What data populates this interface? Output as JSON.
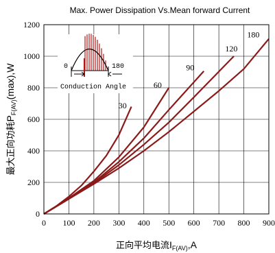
{
  "chart_data": {
    "type": "line",
    "title": "Max. Power Dissipation Vs.Mean forward Current",
    "xlabel": {
      "prefix": "正向平均电流",
      "symbol": "I",
      "subscript": "F(AV)",
      "unit": ",A"
    },
    "ylabel": {
      "prefix": "最大正向功耗",
      "symbol": "P",
      "subscript": "F(AV)",
      "unit": "(max),W"
    },
    "xlim": [
      0,
      900
    ],
    "ylim": [
      0,
      1200
    ],
    "xticks": [
      0,
      100,
      200,
      300,
      400,
      500,
      600,
      700,
      800,
      900
    ],
    "yticks": [
      0,
      200,
      400,
      600,
      800,
      1000,
      1200
    ],
    "grid": true,
    "series": [
      {
        "name": "30",
        "x": [
          0,
          50,
          100,
          150,
          200,
          250,
          300,
          350
        ],
        "y": [
          0,
          50,
          110,
          180,
          270,
          370,
          500,
          680
        ]
      },
      {
        "name": "60",
        "x": [
          0,
          100,
          200,
          300,
          400,
          500
        ],
        "y": [
          0,
          100,
          210,
          360,
          550,
          800
        ]
      },
      {
        "name": "90",
        "x": [
          0,
          100,
          200,
          300,
          400,
          500,
          640
        ],
        "y": [
          0,
          95,
          200,
          330,
          480,
          660,
          905
        ]
      },
      {
        "name": "120",
        "x": [
          0,
          100,
          200,
          300,
          400,
          500,
          600,
          760
        ],
        "y": [
          0,
          95,
          195,
          310,
          440,
          580,
          740,
          1000
        ]
      },
      {
        "name": "180",
        "x": [
          0,
          100,
          200,
          300,
          400,
          500,
          600,
          700,
          800,
          900
        ],
        "y": [
          0,
          95,
          190,
          290,
          400,
          520,
          650,
          780,
          920,
          1110
        ]
      }
    ],
    "series_label_points": [
      {
        "name": "30",
        "x": 315,
        "y": 670
      },
      {
        "name": "60",
        "x": 455,
        "y": 800
      },
      {
        "name": "90",
        "x": 585,
        "y": 910
      },
      {
        "name": "120",
        "x": 750,
        "y": 1030
      },
      {
        "name": "180",
        "x": 838,
        "y": 1120
      }
    ],
    "inset": {
      "label_left": "0",
      "label_right": "180",
      "caption": "Conduction Angle"
    },
    "colors": {
      "curve": "#8b1a1a",
      "fill": "#b01818"
    }
  }
}
